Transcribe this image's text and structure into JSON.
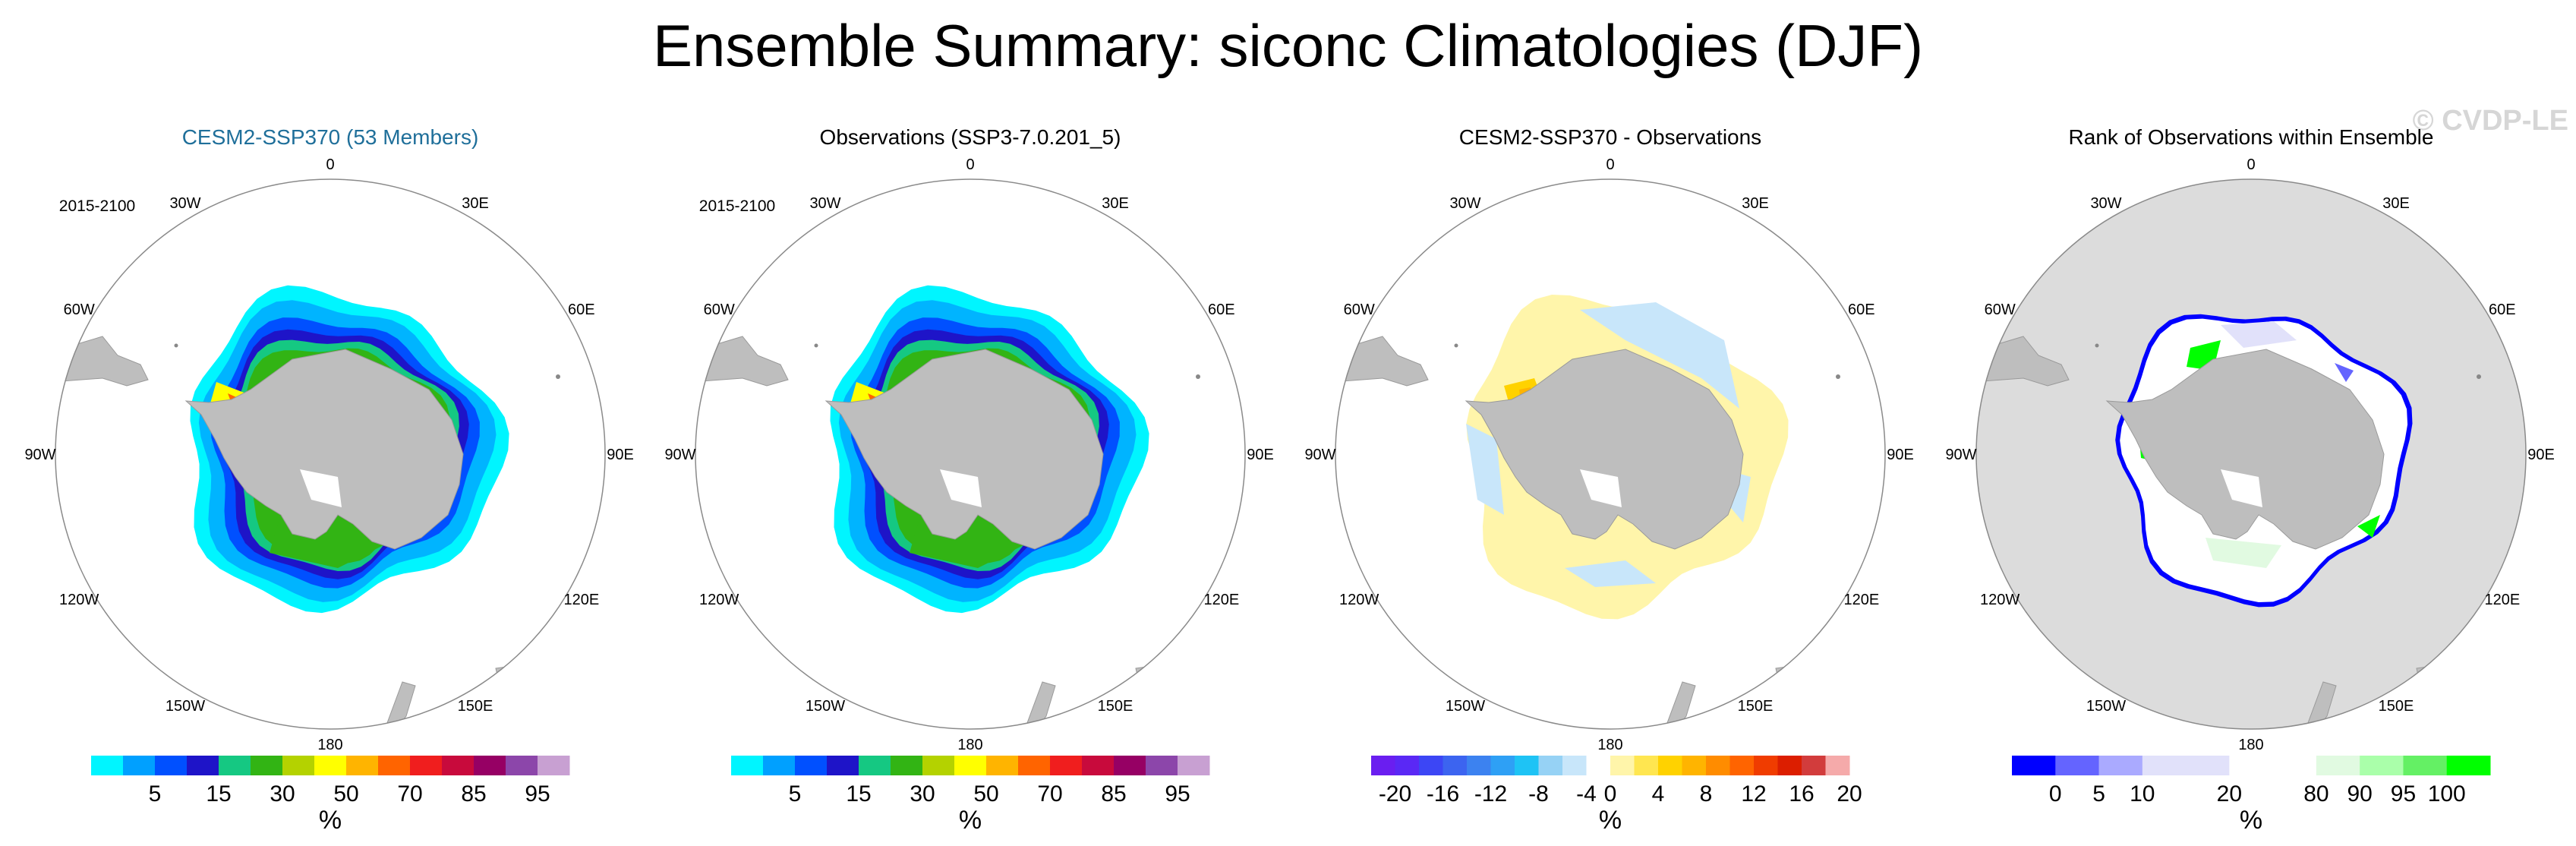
{
  "figure": {
    "title": "Ensemble Summary: siconc Climatologies (DJF)",
    "watermark": "© CVDP-LE"
  },
  "colors": {
    "land": "#bebebe",
    "outside_ocean": "#ffffff",
    "rank_outside": "#dcdcdc",
    "title_accent": "#1f6f9a"
  },
  "chart_data": [
    {
      "type": "heatmap",
      "projection": "south-polar-stereographic",
      "title": "CESM2-SSP370 (53 Members)",
      "title_color": "#1f6f9a",
      "period": "2015-2100",
      "lon_labels": [
        "0",
        "30E",
        "60E",
        "90E",
        "120E",
        "150E",
        "180",
        "150W",
        "120W",
        "90W",
        "60W",
        "30W"
      ],
      "variant": "clim",
      "colorbar": {
        "colors": [
          "#00f5ff",
          "#00a0ff",
          "#0050ff",
          "#1e14c8",
          "#15c882",
          "#32b414",
          "#b4d200",
          "#ffff00",
          "#ffb400",
          "#ff6400",
          "#f01e1e",
          "#c80a3c",
          "#960064",
          "#8c46aa",
          "#c8a0d2"
        ],
        "tick_labels": [
          "5",
          "15",
          "30",
          "50",
          "70",
          "85",
          "95"
        ],
        "tick_after_box": [
          1,
          3,
          5,
          7,
          9,
          11,
          13
        ],
        "label": "%"
      }
    },
    {
      "type": "heatmap",
      "projection": "south-polar-stereographic",
      "title": "Observations (SSP3-7.0.201_5)",
      "title_color": "#000000",
      "period": "2015-2100",
      "lon_labels": [
        "0",
        "30E",
        "60E",
        "90E",
        "120E",
        "150E",
        "180",
        "150W",
        "120W",
        "90W",
        "60W",
        "30W"
      ],
      "variant": "clim",
      "colorbar": {
        "colors": [
          "#00f5ff",
          "#00a0ff",
          "#0050ff",
          "#1e14c8",
          "#15c882",
          "#32b414",
          "#b4d200",
          "#ffff00",
          "#ffb400",
          "#ff6400",
          "#f01e1e",
          "#c80a3c",
          "#960064",
          "#8c46aa",
          "#c8a0d2"
        ],
        "tick_labels": [
          "5",
          "15",
          "30",
          "50",
          "70",
          "85",
          "95"
        ],
        "tick_after_box": [
          1,
          3,
          5,
          7,
          9,
          11,
          13
        ],
        "label": "%"
      }
    },
    {
      "type": "heatmap",
      "projection": "south-polar-stereographic",
      "title": "CESM2-SSP370 - Observations",
      "title_color": "#000000",
      "period": "",
      "lon_labels": [
        "0",
        "30E",
        "60E",
        "90E",
        "120E",
        "150E",
        "180",
        "150W",
        "120W",
        "90W",
        "60W",
        "30W"
      ],
      "variant": "diff",
      "colorbar": {
        "colors": [
          "#6a1ef0",
          "#5a28f5",
          "#3c46f5",
          "#3c64f0",
          "#3c82f0",
          "#2ea0f5",
          "#1ec3f5",
          "#96d2f5",
          "#c8e6fa",
          "#ffffff",
          "#fff5aa",
          "#ffe650",
          "#ffd200",
          "#ffb400",
          "#ff8c00",
          "#ff6400",
          "#f03c00",
          "#dc1e00",
          "#d23c3c",
          "#f5aaaa"
        ],
        "tick_labels": [
          "-20",
          "-16",
          "-12",
          "-8",
          "-4",
          "0",
          "4",
          "8",
          "12",
          "16",
          "20"
        ],
        "tick_after_box": [
          0,
          2,
          4,
          6,
          8,
          9,
          11,
          13,
          15,
          17,
          19
        ],
        "label": "%"
      }
    },
    {
      "type": "heatmap",
      "projection": "south-polar-stereographic",
      "title": "Rank of Observations within Ensemble",
      "title_color": "#000000",
      "period": "",
      "lon_labels": [
        "0",
        "30E",
        "60E",
        "90E",
        "120E",
        "150E",
        "180",
        "150W",
        "120W",
        "90W",
        "60W",
        "30W"
      ],
      "variant": "rank",
      "colorbar": {
        "colors": [
          "#0000ff",
          "#6464ff",
          "#aaaaff",
          "#e1e1fa",
          "#e1e1fa",
          "#ffffff",
          "#ffffff",
          "#e1fae1",
          "#aaffaa",
          "#64f064",
          "#00ff00"
        ],
        "tick_labels": [
          "0",
          "5",
          "10",
          "20",
          "80",
          "90",
          "95",
          "100"
        ],
        "tick_after_box": [
          0,
          1,
          2,
          4,
          6,
          7,
          8,
          9
        ],
        "label": "%"
      }
    }
  ]
}
